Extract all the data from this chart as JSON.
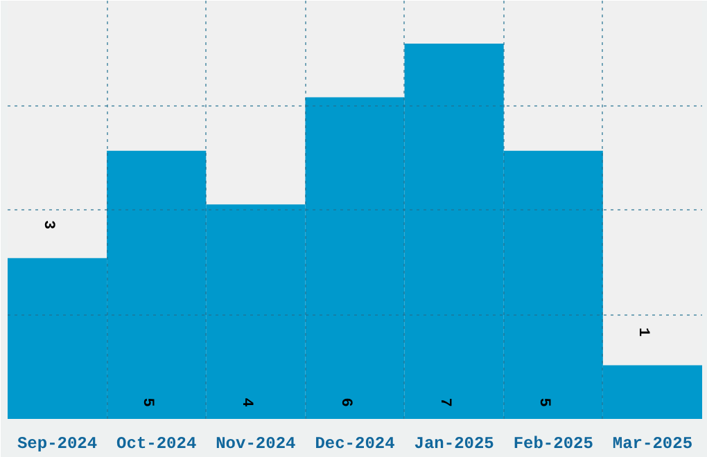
{
  "chart_data": {
    "type": "bar",
    "categories": [
      "Sep-2024",
      "Oct-2024",
      "Nov-2024",
      "Dec-2024",
      "Jan-2025",
      "Feb-2025",
      "Mar-2025"
    ],
    "values": [
      3,
      5,
      4,
      6,
      7,
      5,
      1
    ],
    "color": "#0099cc",
    "ylim": [
      0,
      7.8
    ],
    "yticks": [
      {
        "value": 1.95,
        "label": null
      },
      {
        "value": 3.9,
        "label": null
      },
      {
        "value": 5.85,
        "label": null
      }
    ],
    "tick_labels": "x",
    "grid": true,
    "data_labels": true
  }
}
